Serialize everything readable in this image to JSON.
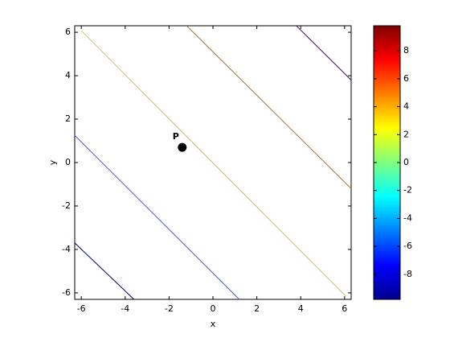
{
  "chart_data": {
    "type": "contour",
    "xlabel": "x",
    "ylabel": "y",
    "xlim": [
      -6.3,
      6.3
    ],
    "ylim": [
      -6.3,
      6.3
    ],
    "xticks": [
      -6,
      -4,
      -2,
      0,
      2,
      4,
      6
    ],
    "yticks": [
      -6,
      -4,
      -2,
      0,
      2,
      4,
      6
    ],
    "series": [
      {
        "color": "#00007a",
        "x": [
          -6.3,
          -3.6
        ],
        "y": [
          -3.7,
          -6.3
        ]
      },
      {
        "color": "#4a5ad0",
        "x": [
          -6.3,
          1.2
        ],
        "y": [
          1.25,
          -6.3
        ]
      },
      {
        "color": "#cdbf6a",
        "x": [
          -6.0,
          6.05
        ],
        "y": [
          6.07,
          -6.15
        ]
      },
      {
        "color": "#b0703a",
        "x": [
          -1.2,
          6.3
        ],
        "y": [
          6.3,
          -1.2
        ]
      },
      {
        "color": "#3a1060",
        "x": [
          3.8,
          6.3
        ],
        "y": [
          6.3,
          3.8
        ]
      }
    ],
    "points": [
      {
        "text": "P",
        "x": -1.4,
        "y": 0.7
      }
    ],
    "colorbar": {
      "lim": [
        -9.8,
        9.8
      ],
      "ticks": [
        -8,
        -6,
        -4,
        -2,
        0,
        2,
        4,
        6,
        8
      ]
    }
  }
}
